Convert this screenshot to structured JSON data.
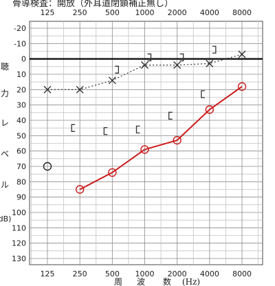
{
  "chart_data": {
    "type": "line",
    "header_note": "骨導検査：開放（外耳道閉鎖補正無し）",
    "x_ticks": [
      "125",
      "250",
      "500",
      "1000",
      "2000",
      "4000",
      "8000"
    ],
    "y_ticks": [
      "-20",
      "-10",
      "0",
      "10",
      "20",
      "30",
      "40",
      "50",
      "60",
      "70",
      "80",
      "90",
      "100",
      "110",
      "120",
      "130"
    ],
    "ylim": [
      -20,
      130
    ],
    "ylabel_chars": [
      "聴",
      "力",
      "レ",
      "ベ",
      "ル"
    ],
    "ylabel_unit": "dB)",
    "xlabel_chars": [
      "周",
      "波",
      "数",
      "(Hz)"
    ],
    "grid": true,
    "reference_level": 0,
    "series": [
      {
        "marker": "x",
        "color": "#333333",
        "line_style": "dotted",
        "x": [
          "125",
          "250",
          "500",
          "1000",
          "2000",
          "4000",
          "8000"
        ],
        "values": [
          20,
          20,
          14,
          4,
          4,
          3,
          -3
        ]
      },
      {
        "marker": "circle",
        "color": "#cc1a1a",
        "line_style": "solid",
        "connect_from_index": 1,
        "x": [
          "125",
          "250",
          "500",
          "1000",
          "2000",
          "4000",
          "8000"
        ],
        "values": [
          70,
          85,
          74,
          59,
          53,
          33,
          18
        ]
      },
      {
        "marker": "bracket-right",
        "color": "#333333",
        "line_style": "none",
        "x": [
          "500",
          "1000",
          "2000",
          "4000"
        ],
        "values": [
          7,
          -1,
          -1,
          -6
        ]
      },
      {
        "marker": "bracket-left",
        "color": "#333333",
        "line_style": "none",
        "x": [
          "250",
          "500",
          "1000",
          "2000",
          "4000"
        ],
        "values": [
          45,
          47,
          46,
          37,
          23
        ]
      }
    ]
  }
}
